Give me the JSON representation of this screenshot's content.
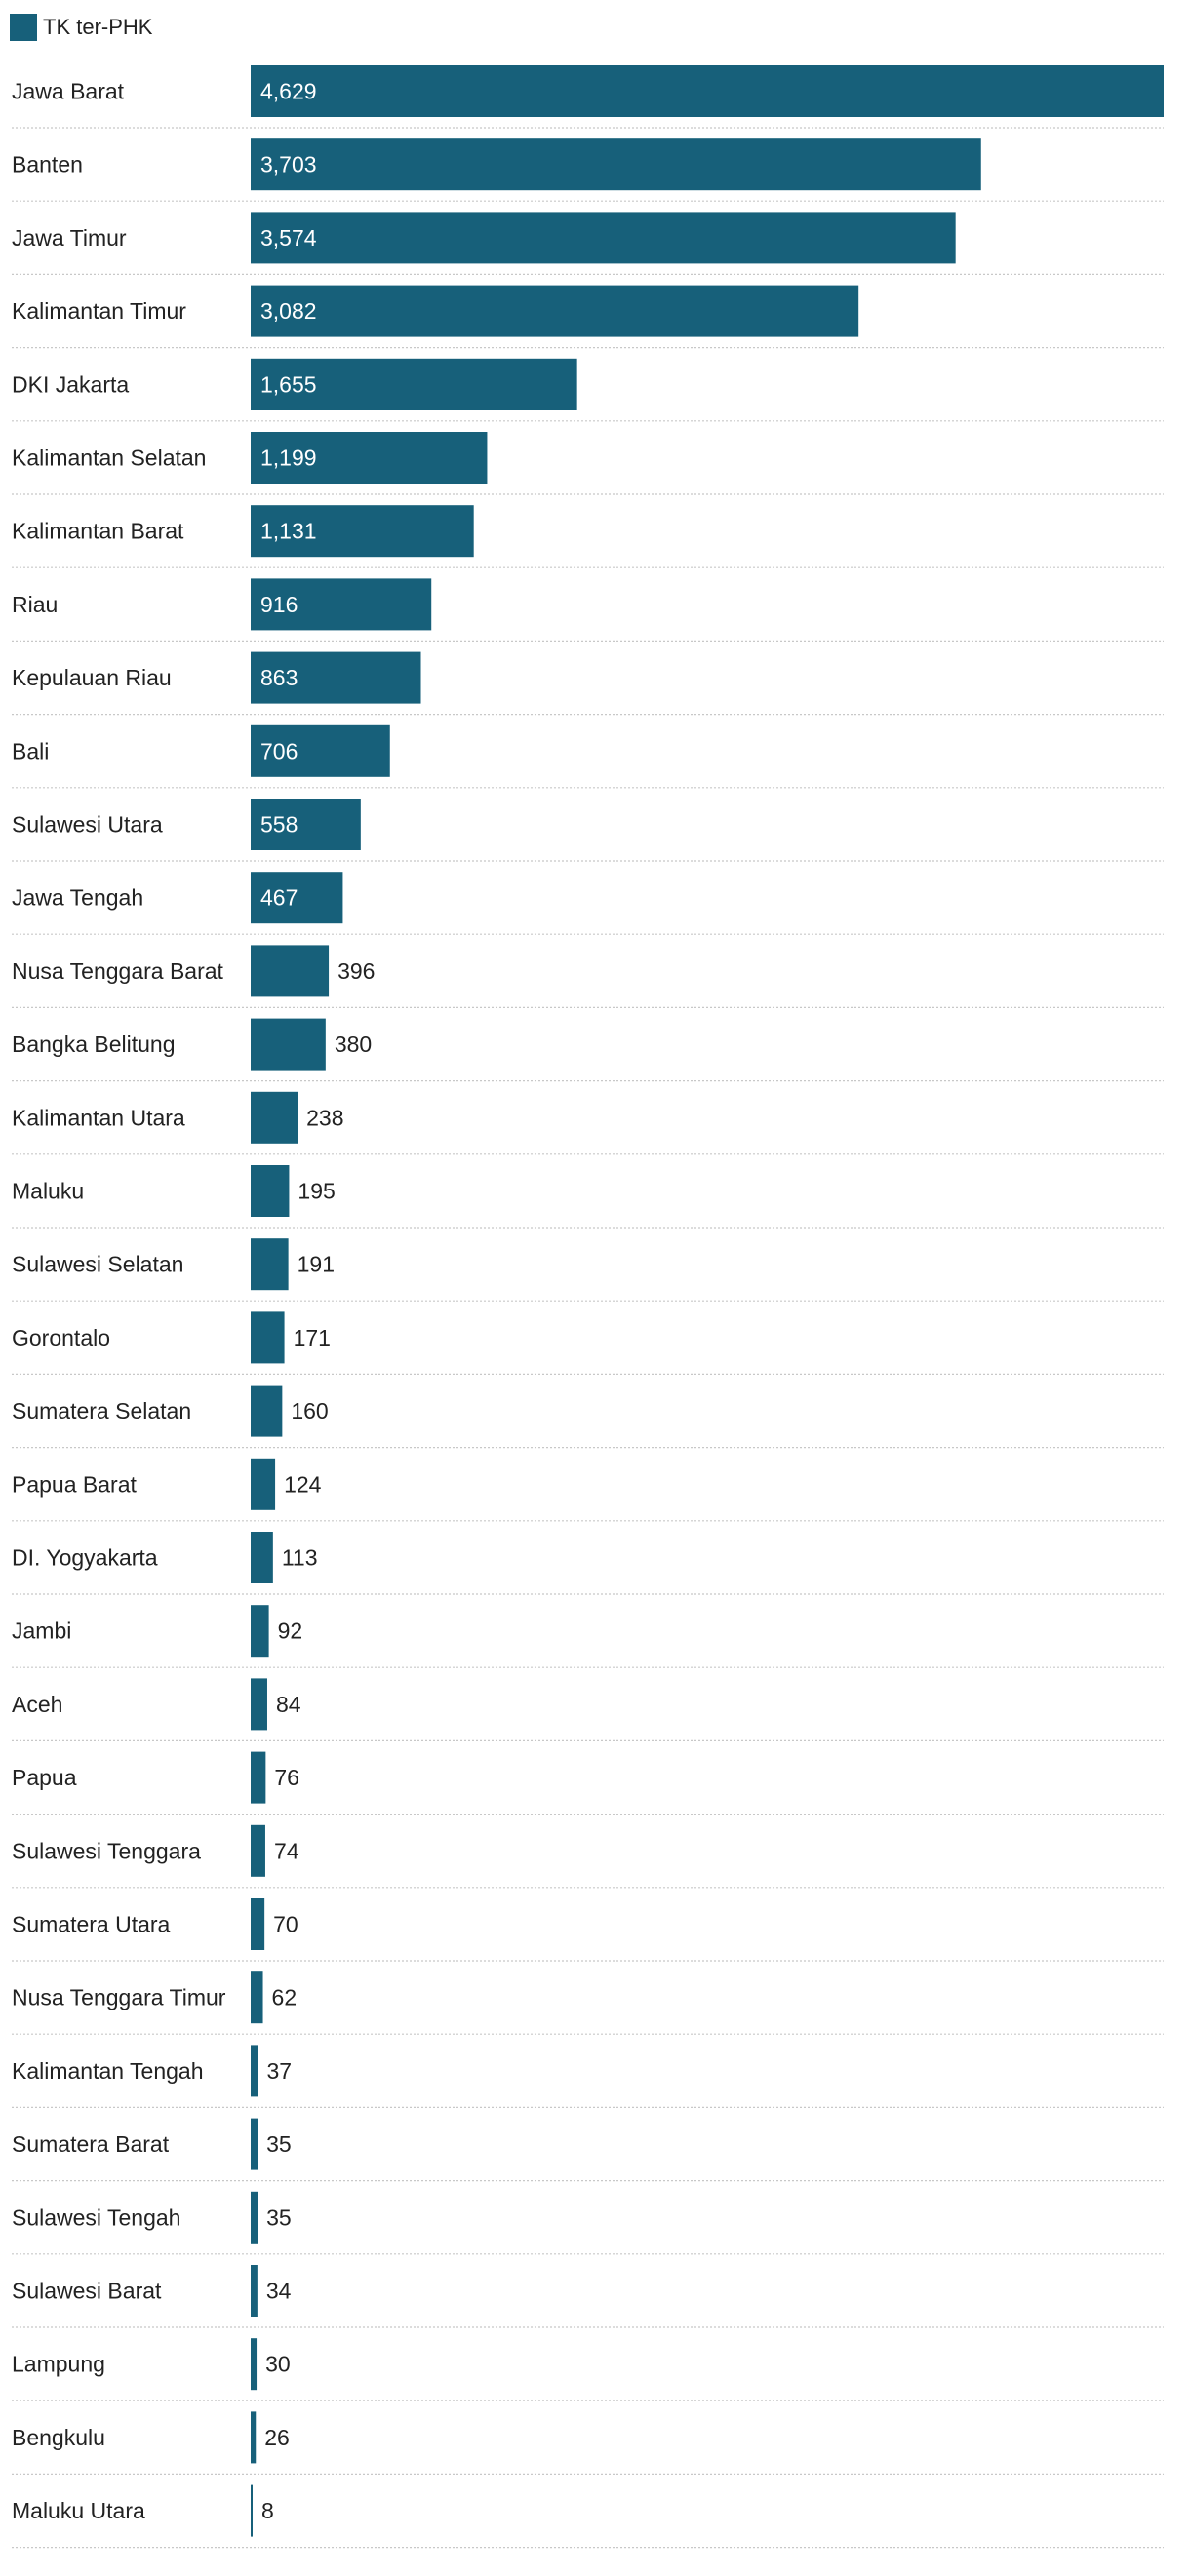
{
  "chart_data": {
    "type": "bar",
    "orientation": "horizontal",
    "bar_color": "#17607a",
    "legend_position": "top-left",
    "series": [
      {
        "name": "TK ter-PHK",
        "values": [
          4629,
          3703,
          3574,
          3082,
          1655,
          1199,
          1131,
          916,
          863,
          706,
          558,
          467,
          396,
          380,
          238,
          195,
          191,
          171,
          160,
          124,
          113,
          92,
          84,
          76,
          74,
          70,
          62,
          37,
          35,
          35,
          34,
          30,
          26,
          8
        ]
      }
    ],
    "categories": [
      "Jawa Barat",
      "Banten",
      "Jawa Timur",
      "Kalimantan Timur",
      "DKI Jakarta",
      "Kalimantan Selatan",
      "Kalimantan Barat",
      "Riau",
      "Kepulauan Riau",
      "Bali",
      "Sulawesi Utara",
      "Jawa Tengah",
      "Nusa Tenggara Barat",
      "Bangka Belitung",
      "Kalimantan Utara",
      "Maluku",
      "Sulawesi Selatan",
      "Gorontalo",
      "Sumatera Selatan",
      "Papua Barat",
      "DI. Yogyakarta",
      "Jambi",
      "Aceh",
      "Papua",
      "Sulawesi Tenggara",
      "Sumatera Utara",
      "Nusa Tenggara Timur",
      "Kalimantan Tengah",
      "Sumatera Barat",
      "Sulawesi Tengah",
      "Sulawesi Barat",
      "Lampung",
      "Bengkulu",
      "Maluku Utara"
    ],
    "value_labels": [
      "4,629",
      "3,703",
      "3,574",
      "3,082",
      "1,655",
      "1,199",
      "1,131",
      "916",
      "863",
      "706",
      "558",
      "467",
      "396",
      "380",
      "238",
      "195",
      "191",
      "171",
      "160",
      "124",
      "113",
      "92",
      "84",
      "76",
      "74",
      "70",
      "62",
      "37",
      "35",
      "35",
      "34",
      "30",
      "26",
      "8"
    ],
    "xlim": [
      0,
      4629
    ]
  }
}
